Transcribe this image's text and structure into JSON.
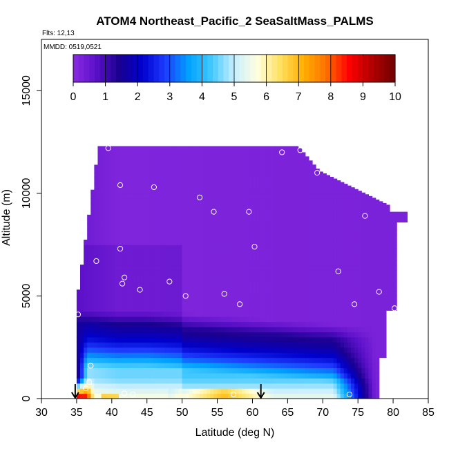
{
  "chart_data": {
    "type": "heatmap",
    "title": "ATOM4 Northeast_Pacific_2 SeaSaltMass_PALMS",
    "annotations": [
      "Flts: 12,13",
      "MMDD: 0519,0521"
    ],
    "xlabel": "Latitude (deg N)",
    "ylabel": "Altitude (m)",
    "xlim": [
      30,
      85
    ],
    "ylim": [
      0,
      17500
    ],
    "xticks": [
      30,
      35,
      40,
      45,
      50,
      55,
      60,
      65,
      70,
      75,
      80,
      85
    ],
    "yticks": [
      0,
      5000,
      10000,
      15000
    ],
    "colorbar": {
      "placement": "top",
      "range": [
        0,
        10
      ],
      "ticks": [
        0,
        1,
        2,
        3,
        4,
        5,
        6,
        7,
        8,
        9,
        10
      ],
      "colors": [
        "#8A2BE2",
        "#5A10C8",
        "#1A0090",
        "#0000CD",
        "#1E3CFF",
        "#00A0FF",
        "#40C8FF",
        "#C8EEFF",
        "#FFFFE0",
        "#FFE060",
        "#FFB000",
        "#FF7000",
        "#FF0000",
        "#B00000",
        "#700000"
      ]
    },
    "arrows": [
      {
        "x": 34.8,
        "y": 0
      },
      {
        "x": 61.2,
        "y": 0
      }
    ],
    "samples": [
      {
        "x": 39.5,
        "y": 12200
      },
      {
        "x": 41.2,
        "y": 10400
      },
      {
        "x": 46.0,
        "y": 10300
      },
      {
        "x": 52.5,
        "y": 9800
      },
      {
        "x": 54.5,
        "y": 9100
      },
      {
        "x": 59.5,
        "y": 9100
      },
      {
        "x": 64.2,
        "y": 12000
      },
      {
        "x": 66.8,
        "y": 12100
      },
      {
        "x": 69.2,
        "y": 11000
      },
      {
        "x": 76.0,
        "y": 8900
      },
      {
        "x": 81.8,
        "y": 9300
      },
      {
        "x": 41.2,
        "y": 7300
      },
      {
        "x": 37.8,
        "y": 6700
      },
      {
        "x": 60.3,
        "y": 7400
      },
      {
        "x": 41.8,
        "y": 5900
      },
      {
        "x": 41.5,
        "y": 5600
      },
      {
        "x": 48.2,
        "y": 5700
      },
      {
        "x": 44.0,
        "y": 5300
      },
      {
        "x": 50.5,
        "y": 5000
      },
      {
        "x": 56.0,
        "y": 5100
      },
      {
        "x": 58.2,
        "y": 4600
      },
      {
        "x": 72.2,
        "y": 6200
      },
      {
        "x": 74.5,
        "y": 4600
      },
      {
        "x": 78.0,
        "y": 5200
      },
      {
        "x": 80.2,
        "y": 4400
      },
      {
        "x": 35.2,
        "y": 4100
      },
      {
        "x": 37.0,
        "y": 1600
      },
      {
        "x": 36.8,
        "y": 800
      },
      {
        "x": 36.3,
        "y": 500
      },
      {
        "x": 41.8,
        "y": 250
      },
      {
        "x": 43.0,
        "y": 200
      },
      {
        "x": 57.3,
        "y": 200
      },
      {
        "x": 73.8,
        "y": 200
      },
      {
        "x": 79.0,
        "y": 200
      }
    ]
  }
}
